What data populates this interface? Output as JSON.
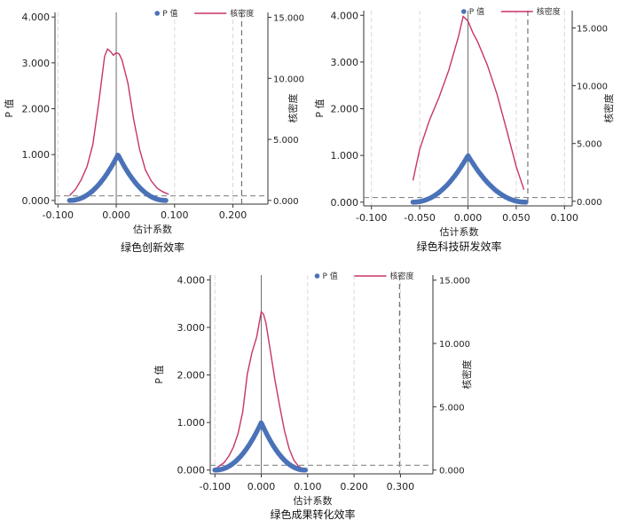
{
  "chart_data": [
    {
      "type": "line",
      "title": "绿色创新效率",
      "xlabel": "估计系数",
      "ylabel": "P 值",
      "y2label": "核密度",
      "legend": [
        "P 值",
        "核密度"
      ],
      "legend_position": "top",
      "xlim": [
        -0.105,
        0.26
      ],
      "ylim": [
        -0.08,
        4.1
      ],
      "y2lim": [
        -0.3,
        15.4
      ],
      "xticks": [
        "-0.100",
        "0.000",
        "0.100",
        "0.200"
      ],
      "xtick_values": [
        -0.1,
        0.0,
        0.1,
        0.2
      ],
      "yticks": [
        "0.000",
        "1.000",
        "2.000",
        "3.000",
        "4.000"
      ],
      "ytick_values": [
        0,
        1,
        2,
        3,
        4
      ],
      "y2ticks": [
        "0.000",
        "5.000",
        "10.000",
        "15.000"
      ],
      "y2tick_values": [
        0,
        5,
        10,
        15
      ],
      "reference_lines": {
        "estimate_x": 0.0,
        "cutoff_x": 0.215,
        "p_threshold": 0.1
      },
      "series": [
        {
          "name": "P 值",
          "kind": "pvalue",
          "xmin": -0.08,
          "xmax": 0.085,
          "peak": 1.0,
          "center": 0.003,
          "color": "#4a72b8"
        },
        {
          "name": "核密度",
          "kind": "density",
          "color": "#c8336b",
          "x": [
            -0.08,
            -0.07,
            -0.06,
            -0.05,
            -0.04,
            -0.03,
            -0.02,
            -0.015,
            -0.01,
            -0.005,
            0.0,
            0.005,
            0.01,
            0.02,
            0.03,
            0.04,
            0.05,
            0.06,
            0.07,
            0.08,
            0.09
          ],
          "y": [
            0.4,
            0.9,
            1.7,
            2.8,
            4.6,
            8.0,
            11.8,
            12.4,
            12.2,
            11.9,
            12.1,
            12.0,
            11.5,
            9.6,
            6.6,
            4.2,
            2.5,
            1.6,
            1.0,
            0.7,
            0.5
          ]
        }
      ]
    },
    {
      "type": "line",
      "title": "绿色科技研发效率",
      "xlabel": "估计系数",
      "ylabel": "P 值",
      "y2label": "核密度",
      "legend": [
        "P 值",
        "核密度"
      ],
      "legend_position": "top",
      "xlim": [
        -0.108,
        0.108
      ],
      "ylim": [
        -0.08,
        4.1
      ],
      "y2lim": [
        -0.4,
        16.5
      ],
      "xticks": [
        "-0.100",
        "-0.050",
        "0.000",
        "0.050",
        "0.100"
      ],
      "xtick_values": [
        -0.1,
        -0.05,
        0.0,
        0.05,
        0.1
      ],
      "yticks": [
        "0.000",
        "1.000",
        "2.000",
        "3.000",
        "4.000"
      ],
      "ytick_values": [
        0,
        1,
        2,
        3,
        4
      ],
      "y2ticks": [
        "0.000",
        "5.000",
        "10.000",
        "15.000"
      ],
      "y2tick_values": [
        0,
        5,
        10,
        15
      ],
      "reference_lines": {
        "estimate_x": 0.0,
        "cutoff_x": 0.062,
        "p_threshold": 0.1
      },
      "series": [
        {
          "name": "P 值",
          "kind": "pvalue",
          "xmin": -0.057,
          "xmax": 0.06,
          "peak": 1.0,
          "center": 0.0,
          "color": "#4a72b8"
        },
        {
          "name": "核密度",
          "kind": "density",
          "color": "#c8336b",
          "x": [
            -0.057,
            -0.05,
            -0.04,
            -0.03,
            -0.02,
            -0.01,
            -0.005,
            0.0,
            0.005,
            0.01,
            0.02,
            0.03,
            0.04,
            0.05,
            0.058
          ],
          "y": [
            1.8,
            4.5,
            7.0,
            9.0,
            11.3,
            14.2,
            16.0,
            15.6,
            14.6,
            13.8,
            11.8,
            9.3,
            6.2,
            3.0,
            1.0
          ]
        }
      ]
    },
    {
      "type": "line",
      "title": "绿色成果转化效率",
      "xlabel": "估计系数",
      "ylabel": "P 值",
      "y2label": "核密度",
      "legend": [
        "P 值",
        "核密度"
      ],
      "legend_position": "top",
      "xlim": [
        -0.11,
        0.37
      ],
      "ylim": [
        -0.08,
        4.1
      ],
      "y2lim": [
        -0.3,
        15.4
      ],
      "xticks": [
        "-0.100",
        "0.000",
        "0.100",
        "0.200",
        "0.300"
      ],
      "xtick_values": [
        -0.1,
        0.0,
        0.1,
        0.2,
        0.3
      ],
      "yticks": [
        "0.000",
        "1.000",
        "2.000",
        "3.000",
        "4.000"
      ],
      "ytick_values": [
        0,
        1,
        2,
        3,
        4
      ],
      "y2ticks": [
        "0.000",
        "5.000",
        "10.000",
        "15.000"
      ],
      "y2tick_values": [
        0,
        5,
        10,
        15
      ],
      "reference_lines": {
        "estimate_x": 0.0,
        "cutoff_x": 0.298,
        "p_threshold": 0.1
      },
      "series": [
        {
          "name": "P 值",
          "kind": "pvalue",
          "xmin": -0.1,
          "xmax": 0.095,
          "peak": 1.0,
          "center": 0.0,
          "color": "#4a72b8"
        },
        {
          "name": "核密度",
          "kind": "density",
          "color": "#c8336b",
          "x": [
            -0.095,
            -0.08,
            -0.07,
            -0.06,
            -0.05,
            -0.04,
            -0.03,
            -0.02,
            -0.01,
            0.0,
            0.005,
            0.01,
            0.02,
            0.03,
            0.04,
            0.05,
            0.06,
            0.07,
            0.08,
            0.09
          ],
          "y": [
            0.2,
            0.6,
            1.1,
            1.8,
            2.9,
            4.6,
            7.6,
            9.3,
            10.5,
            12.5,
            12.3,
            11.6,
            9.3,
            7.0,
            5.0,
            3.1,
            1.7,
            0.8,
            0.3,
            0.1
          ]
        }
      ]
    }
  ]
}
